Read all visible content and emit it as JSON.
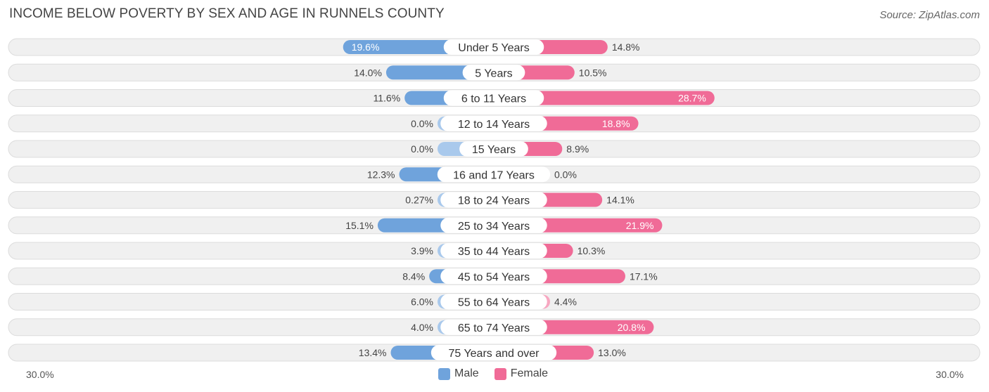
{
  "header": {
    "title": "INCOME BELOW POVERTY BY SEX AND AGE IN RUNNELS COUNTY",
    "source": "Source: ZipAtlas.com"
  },
  "colors": {
    "male": "#6fa3dc",
    "male_light": "#a9c9ec",
    "female": "#f06b97",
    "female_light": "#f7a7c1"
  },
  "chart_data": {
    "type": "bar",
    "orientation": "horizontal-diverging",
    "title": "INCOME BELOW POVERTY BY SEX AND AGE IN RUNNELS COUNTY",
    "xlim": [
      -30,
      30
    ],
    "axis_left_label": "30.0%",
    "axis_right_label": "30.0%",
    "legend": [
      {
        "name": "Male",
        "color": "#6fa3dc"
      },
      {
        "name": "Female",
        "color": "#f06b97"
      }
    ],
    "categories": [
      "Under 5 Years",
      "5 Years",
      "6 to 11 Years",
      "12 to 14 Years",
      "15 Years",
      "16 and 17 Years",
      "18 to 24 Years",
      "25 to 34 Years",
      "35 to 44 Years",
      "45 to 54 Years",
      "55 to 64 Years",
      "65 to 74 Years",
      "75 Years and over"
    ],
    "series": [
      {
        "name": "Male",
        "values": [
          19.6,
          14.0,
          11.6,
          0.0,
          0.0,
          12.3,
          0.27,
          15.1,
          3.9,
          8.4,
          6.0,
          4.0,
          13.4
        ],
        "labels": [
          "19.6%",
          "14.0%",
          "11.6%",
          "0.0%",
          "0.0%",
          "12.3%",
          "0.27%",
          "15.1%",
          "3.9%",
          "8.4%",
          "6.0%",
          "4.0%",
          "13.4%"
        ]
      },
      {
        "name": "Female",
        "values": [
          14.8,
          10.5,
          28.7,
          18.8,
          8.9,
          0.0,
          14.1,
          21.9,
          10.3,
          17.1,
          4.4,
          20.8,
          13.0
        ],
        "labels": [
          "14.8%",
          "10.5%",
          "28.7%",
          "18.8%",
          "8.9%",
          "0.0%",
          "14.1%",
          "21.9%",
          "10.3%",
          "17.1%",
          "4.4%",
          "20.8%",
          "13.0%"
        ]
      }
    ]
  }
}
